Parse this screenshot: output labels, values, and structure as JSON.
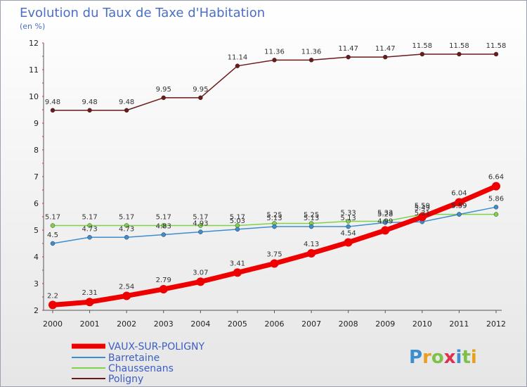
{
  "chart_data": {
    "type": "line",
    "title": "Evolution du Taux de Taxe d'Habitation",
    "subtitle": "(en %)",
    "x": [
      2000,
      2001,
      2002,
      2003,
      2004,
      2005,
      2006,
      2007,
      2008,
      2009,
      2010,
      2011,
      2012
    ],
    "x_tick_labels": [
      "2000",
      "2001",
      "2002",
      "2003",
      "2004",
      "2005",
      "2006",
      "2007",
      "2008",
      "2009",
      "2010",
      "2011",
      "2012"
    ],
    "ylim": [
      2,
      12
    ],
    "y_ticks": [
      2,
      3,
      4,
      5,
      6,
      7,
      8,
      9,
      10,
      11,
      12
    ],
    "y_tick_labels": [
      "2",
      "3",
      "4",
      "5",
      "6",
      "7",
      "8",
      "9",
      "10",
      "11",
      "12"
    ],
    "grid": false,
    "legend_position": "bottom-left",
    "series": [
      {
        "name": "Poligny",
        "color": "#6b1a1a",
        "values": [
          9.48,
          9.48,
          9.48,
          9.95,
          9.95,
          11.14,
          11.36,
          11.36,
          11.47,
          11.47,
          11.58,
          11.58,
          11.58
        ],
        "labels": [
          "9.48",
          "9.48",
          "9.48",
          "9.95",
          "9.95",
          "11.14",
          "11.36",
          "11.36",
          "11.47",
          "11.47",
          "11.58",
          "11.58",
          "11.58"
        ]
      },
      {
        "name": "Chaussenans",
        "color": "#7fd34a",
        "values": [
          5.17,
          5.17,
          5.17,
          5.17,
          5.17,
          5.17,
          5.25,
          5.25,
          5.33,
          5.33,
          5.59,
          5.59,
          5.59
        ],
        "labels": [
          "5.17",
          "5.17",
          "5.17",
          "5.17",
          "5.17",
          "5.17",
          "5.25",
          "5.25",
          "5.33",
          "5.33",
          "5.59",
          "5.59",
          ""
        ]
      },
      {
        "name": "Barretaine",
        "color": "#3d8ecf",
        "values": [
          4.5,
          4.73,
          4.73,
          4.83,
          4.93,
          5.03,
          5.13,
          5.13,
          5.13,
          5.28,
          5.31,
          5.59,
          5.86
        ],
        "labels": [
          "4.5",
          "4.73",
          "4.73",
          "4.83",
          "4.93",
          "5.03",
          "5.13",
          "5.13",
          "5.13",
          "5.28",
          "5.31",
          "5.59",
          "5.86"
        ]
      },
      {
        "name": "VAUX-SUR-POLIGNY",
        "color": "#ee0000",
        "values": [
          2.2,
          2.31,
          2.54,
          2.79,
          3.07,
          3.41,
          3.75,
          4.13,
          4.54,
          4.99,
          5.49,
          6.04,
          6.64
        ],
        "labels": [
          "2.2",
          "2.31",
          "2.54",
          "2.79",
          "3.07",
          "3.41",
          "3.75",
          "4.13",
          "4.54",
          "4.99",
          "5.49",
          "6.04",
          "6.64"
        ]
      }
    ],
    "legend": [
      "VAUX-SUR-POLIGNY",
      "Barretaine",
      "Chaussenans",
      "Poligny"
    ]
  },
  "logo": {
    "text": "Proxiti"
  }
}
